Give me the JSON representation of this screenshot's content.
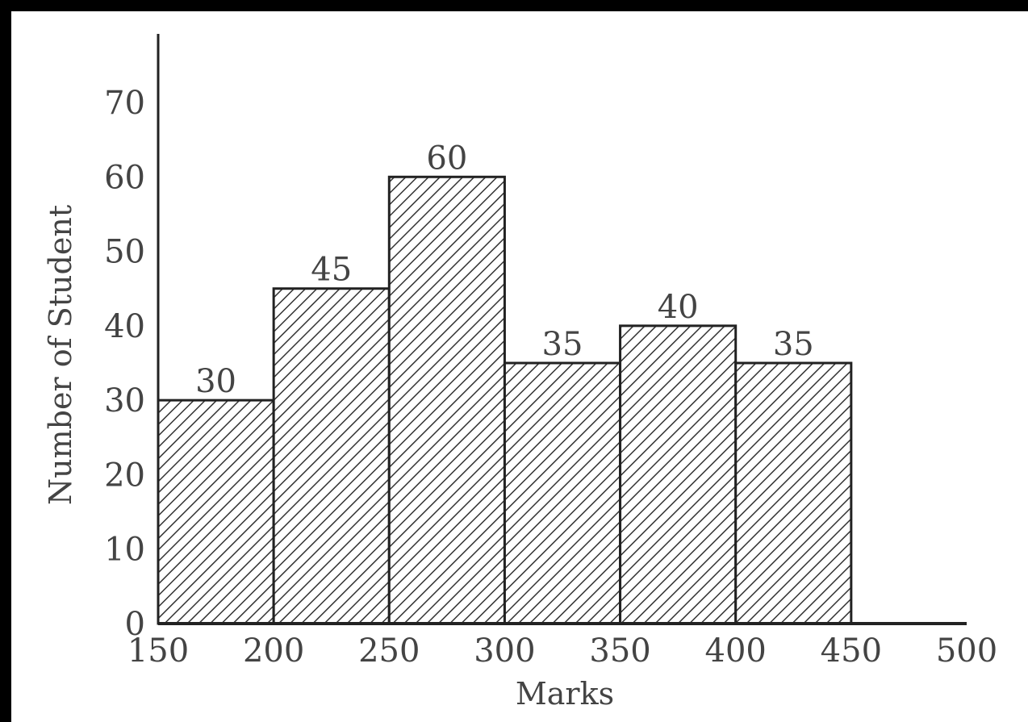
{
  "chart_data": {
    "type": "bar",
    "title": "",
    "xlabel": "Marks",
    "ylabel": "Number of Student",
    "bins": [
      [
        150,
        200
      ],
      [
        200,
        250
      ],
      [
        250,
        300
      ],
      [
        300,
        350
      ],
      [
        350,
        400
      ],
      [
        400,
        450
      ]
    ],
    "values": [
      30,
      45,
      60,
      35,
      40,
      35
    ],
    "data_labels": [
      "30",
      "45",
      "60",
      "35",
      "40",
      "35"
    ],
    "x_ticks": [
      "150",
      "200",
      "250",
      "300",
      "350",
      "400",
      "450",
      "500"
    ],
    "y_ticks": [
      "0",
      "10",
      "20",
      "30",
      "40",
      "50",
      "60",
      "70"
    ],
    "xlim": [
      150,
      500
    ],
    "ylim": [
      0,
      70
    ],
    "grid": false,
    "legend": "none",
    "colors": {
      "bar_stroke": "#222222",
      "hatch": "#333333",
      "bar_fill": "#ffffff",
      "text": "#444444",
      "frame": "#000000"
    }
  }
}
